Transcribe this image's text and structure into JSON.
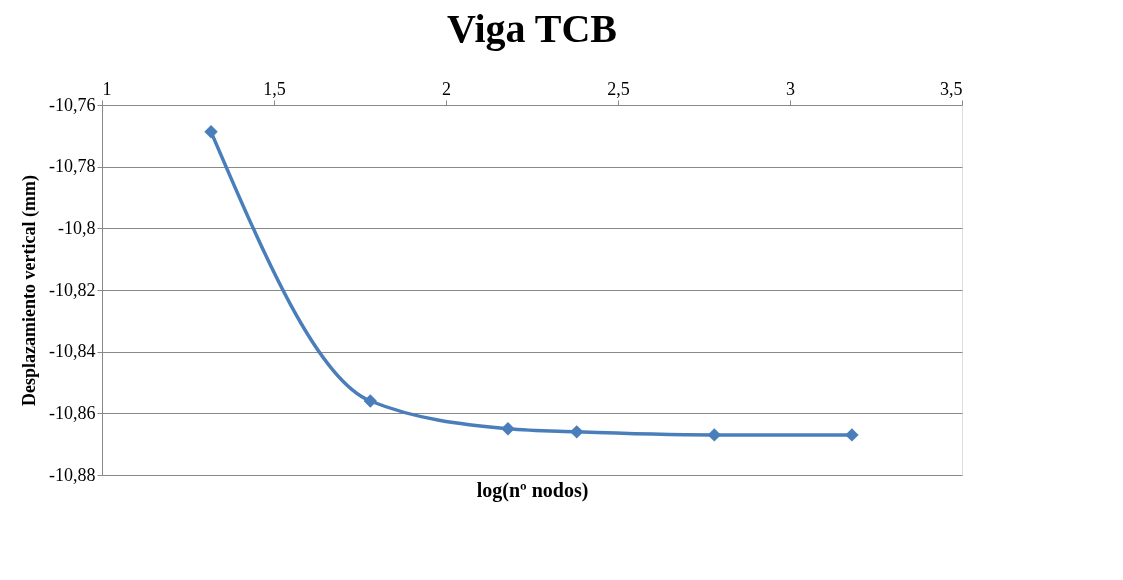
{
  "chart_data": {
    "type": "line",
    "title": "Viga TCB",
    "xlabel": "log(nº nodos)",
    "ylabel": "Desplazamiento vertical (mm)",
    "x": [
      1.317,
      1.78,
      2.18,
      2.38,
      2.78,
      3.18
    ],
    "series": [
      {
        "color": "#4a7ebb",
        "values": [
          -10.7687,
          -10.856,
          -10.865,
          -10.866,
          -10.867,
          -10.867
        ]
      }
    ],
    "xlim": [
      1,
      3.5
    ],
    "xticks": [
      1,
      {
        "value": 1.5,
        "label": "1,5"
      },
      2,
      {
        "value": 2.5,
        "label": "2,5"
      },
      3,
      {
        "value": 3.5,
        "label": "3,5"
      }
    ],
    "ylim": [
      -10.88,
      -10.76
    ],
    "yticks": [
      {
        "value": -10.88,
        "label": "-10,88"
      },
      {
        "value": -10.86,
        "label": "-10,86"
      },
      {
        "value": -10.84,
        "label": "-10,84"
      },
      {
        "value": -10.82,
        "label": "-10,82"
      },
      {
        "value": -10.8,
        "label": "-10,8"
      },
      {
        "value": -10.78,
        "label": "-10,78"
      },
      {
        "value": -10.76,
        "label": "-10,76"
      }
    ],
    "grid": "y",
    "marker": "diamond",
    "line_style": "solid"
  }
}
